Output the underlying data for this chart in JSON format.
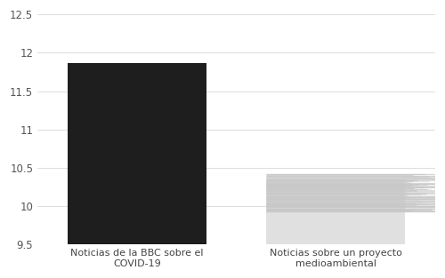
{
  "categories": [
    "Noticias de la BBC sobre el\nCOVID-19",
    "Noticias sobre un proyecto\nmedioambiental"
  ],
  "values": [
    11.87,
    10.35
  ],
  "bar_colors": [
    "#1e1e1e",
    "#e0e0e0"
  ],
  "bar_width": 0.35,
  "ylim": [
    9.5,
    12.5
  ],
  "ymin": 9.5,
  "yticks": [
    9.5,
    10.0,
    10.5,
    11.0,
    11.5,
    12.0,
    12.5
  ],
  "ci_low": 9.93,
  "ci_high": 10.42,
  "grid_color": "#d8d8d8",
  "tick_label_fontsize": 8.5,
  "xlabel_fontsize": 8,
  "background_color": "#ffffff",
  "x_positions": [
    0.25,
    0.75
  ]
}
